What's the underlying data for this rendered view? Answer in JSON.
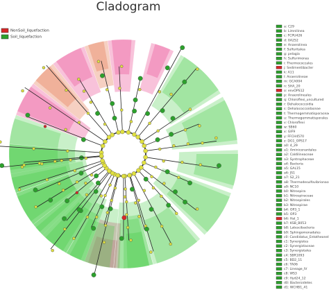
{
  "title": "Cladogram",
  "legend": [
    {
      "label": "NonSoil_liquefaction",
      "color": "#d62728"
    },
    {
      "label": "Soil_liquefaction",
      "color": "#2ca02c"
    }
  ],
  "taxa": [
    {
      "label": "a: C29",
      "color": "#2ca02c"
    },
    {
      "label": "b: Limnilinea",
      "color": "#2ca02c"
    },
    {
      "label": "c: FCPU426",
      "color": "#2ca02c"
    },
    {
      "label": "d: 0A252",
      "color": "#2ca02c"
    },
    {
      "label": "e: Anaerolinea",
      "color": "#2ca02c"
    },
    {
      "label": "f: Sulfuritalea",
      "color": "#2ca02c"
    },
    {
      "label": "g: pelagia",
      "color": "#2ca02c"
    },
    {
      "label": "h: Sulfurimonas",
      "color": "#2ca02c"
    },
    {
      "label": "i: Thermococcales",
      "color": "#2ca02c"
    },
    {
      "label": "j: Sedimentibacter",
      "color": "#d62728"
    },
    {
      "label": "k: A11",
      "color": "#2ca02c"
    },
    {
      "label": "l: Anaerolineae",
      "color": "#2ca02c"
    },
    {
      "label": "m: GCA004",
      "color": "#2ca02c"
    },
    {
      "label": "n: SHA_20",
      "color": "#2ca02c"
    },
    {
      "label": "o: envOPS12",
      "color": "#d62728"
    },
    {
      "label": "p: Anaerolineales",
      "color": "#2ca02c"
    },
    {
      "label": "q: Chloroflexi_uncultured",
      "color": "#2ca02c"
    },
    {
      "label": "r: Dehalococcoidia",
      "color": "#2ca02c"
    },
    {
      "label": "s: Dehalococcoidaceae",
      "color": "#2ca02c"
    },
    {
      "label": "t: Thermogemmatisporaceae",
      "color": "#2ca02c"
    },
    {
      "label": "u: Thermogemmatisporales",
      "color": "#2ca02c"
    },
    {
      "label": "v: Chloroflexi",
      "color": "#2ca02c"
    },
    {
      "label": "w: SB60",
      "color": "#2ca02c"
    },
    {
      "label": "x: GIF9",
      "color": "#2ca02c"
    },
    {
      "label": "y: FFCH4570",
      "color": "#2ca02c"
    },
    {
      "label": "z: DG1_OPS17",
      "color": "#2ca02c"
    },
    {
      "label": "a0: 4_29",
      "color": "#2ca02c"
    },
    {
      "label": "a1: Aminicenantales",
      "color": "#2ca02c"
    },
    {
      "label": "a2: Caldilineaceae",
      "color": "#2ca02c"
    },
    {
      "label": "a3: Syntrophaceae",
      "color": "#2ca02c"
    },
    {
      "label": "a4: Bacteria",
      "color": "#2ca02c"
    },
    {
      "label": "a5: GAL15",
      "color": "#2ca02c"
    },
    {
      "label": "a6: JS1",
      "color": "#2ca02c"
    },
    {
      "label": "a7: S2_21",
      "color": "#2ca02c"
    },
    {
      "label": "a8: Thermodesulfovibrionaceae",
      "color": "#2ca02c"
    },
    {
      "label": "a9: NC10",
      "color": "#2ca02c"
    },
    {
      "label": "b0: Nitrospira",
      "color": "#2ca02c"
    },
    {
      "label": "b1: Nitrospiraceae",
      "color": "#2ca02c"
    },
    {
      "label": "b2: Nitrospirales",
      "color": "#2ca02c"
    },
    {
      "label": "b3: Nitrospirae",
      "color": "#2ca02c"
    },
    {
      "label": "b4: OP3_1",
      "color": "#2ca02c"
    },
    {
      "label": "b5: OP3",
      "color": "#2ca02c"
    },
    {
      "label": "b6: Hal_1",
      "color": "#d62728"
    },
    {
      "label": "b7: KSB_B053",
      "color": "#2ca02c"
    },
    {
      "label": "b8: Latescibacteria",
      "color": "#2ca02c"
    },
    {
      "label": "b9: Sphingomonadales",
      "color": "#2ca02c"
    },
    {
      "label": "c0: Candidatus_Entotheonella",
      "color": "#2ca02c"
    },
    {
      "label": "c1: Synergistes",
      "color": "#2ca02c"
    },
    {
      "label": "c2: Synergistaceae",
      "color": "#2ca02c"
    },
    {
      "label": "c3: Synergistales",
      "color": "#2ca02c"
    },
    {
      "label": "c4: SBR1093",
      "color": "#2ca02c"
    },
    {
      "label": "c5: BD2_11",
      "color": "#2ca02c"
    },
    {
      "label": "c6: TA06",
      "color": "#2ca02c"
    },
    {
      "label": "c7: Lineage_IV",
      "color": "#2ca02c"
    },
    {
      "label": "c8: WS3",
      "color": "#2ca02c"
    },
    {
      "label": "c9: Hyd24_12",
      "color": "#2ca02c"
    },
    {
      "label": "d0: Bacteroidetes",
      "color": "#2ca02c"
    },
    {
      "label": "d1: WCHB1_41",
      "color": "#2ca02c"
    }
  ]
}
